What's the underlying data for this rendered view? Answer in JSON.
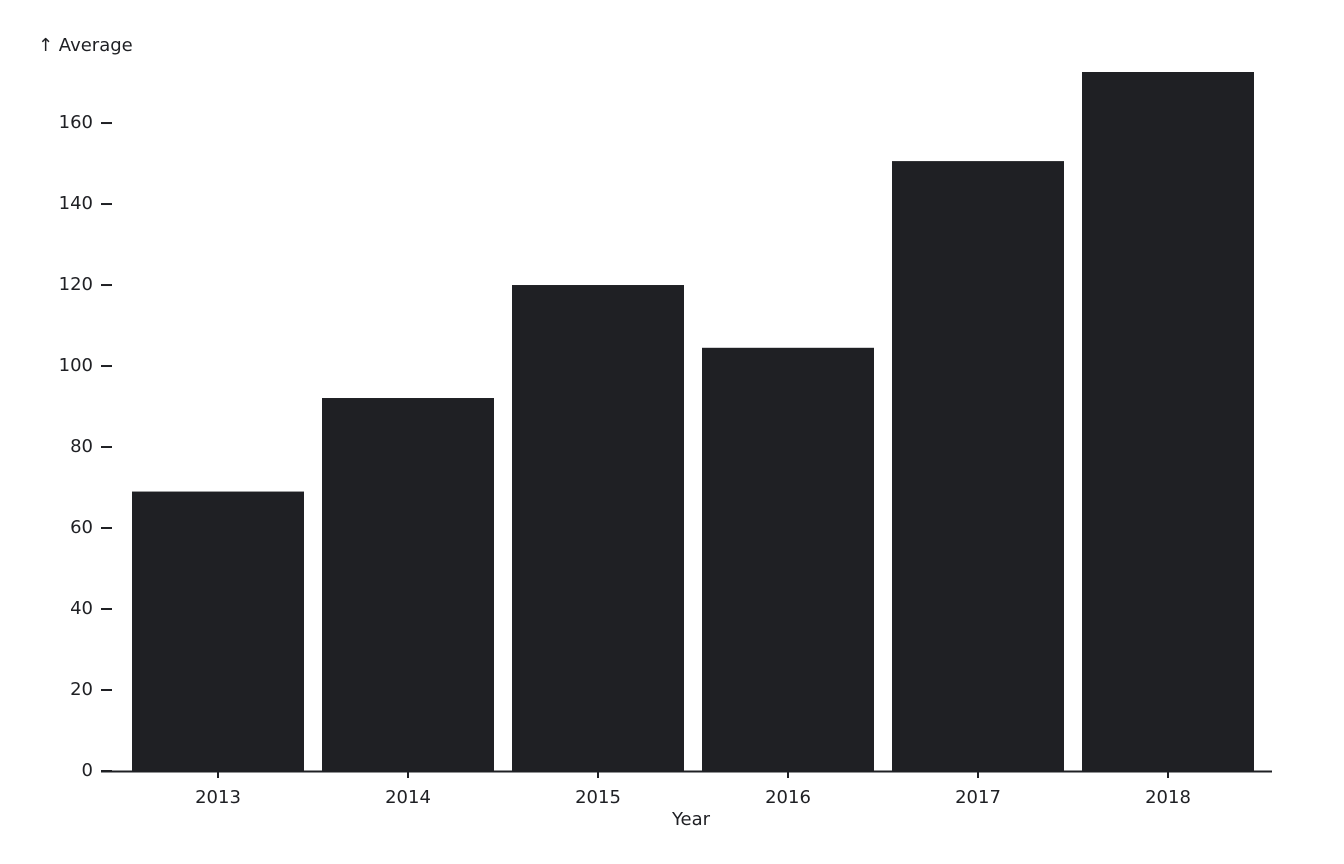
{
  "chart_data": {
    "type": "bar",
    "y_label": "↑ Average",
    "x_label": "Year",
    "categories": [
      "2013",
      "2014",
      "2015",
      "2016",
      "2017",
      "2018"
    ],
    "values": [
      69,
      92.1,
      120,
      104.5,
      150.6,
      172.6
    ],
    "color": "#1f2024",
    "ylim": [
      0,
      172.6
    ],
    "yticks": [
      0,
      20,
      40,
      60,
      80,
      100,
      120,
      140,
      160
    ]
  }
}
